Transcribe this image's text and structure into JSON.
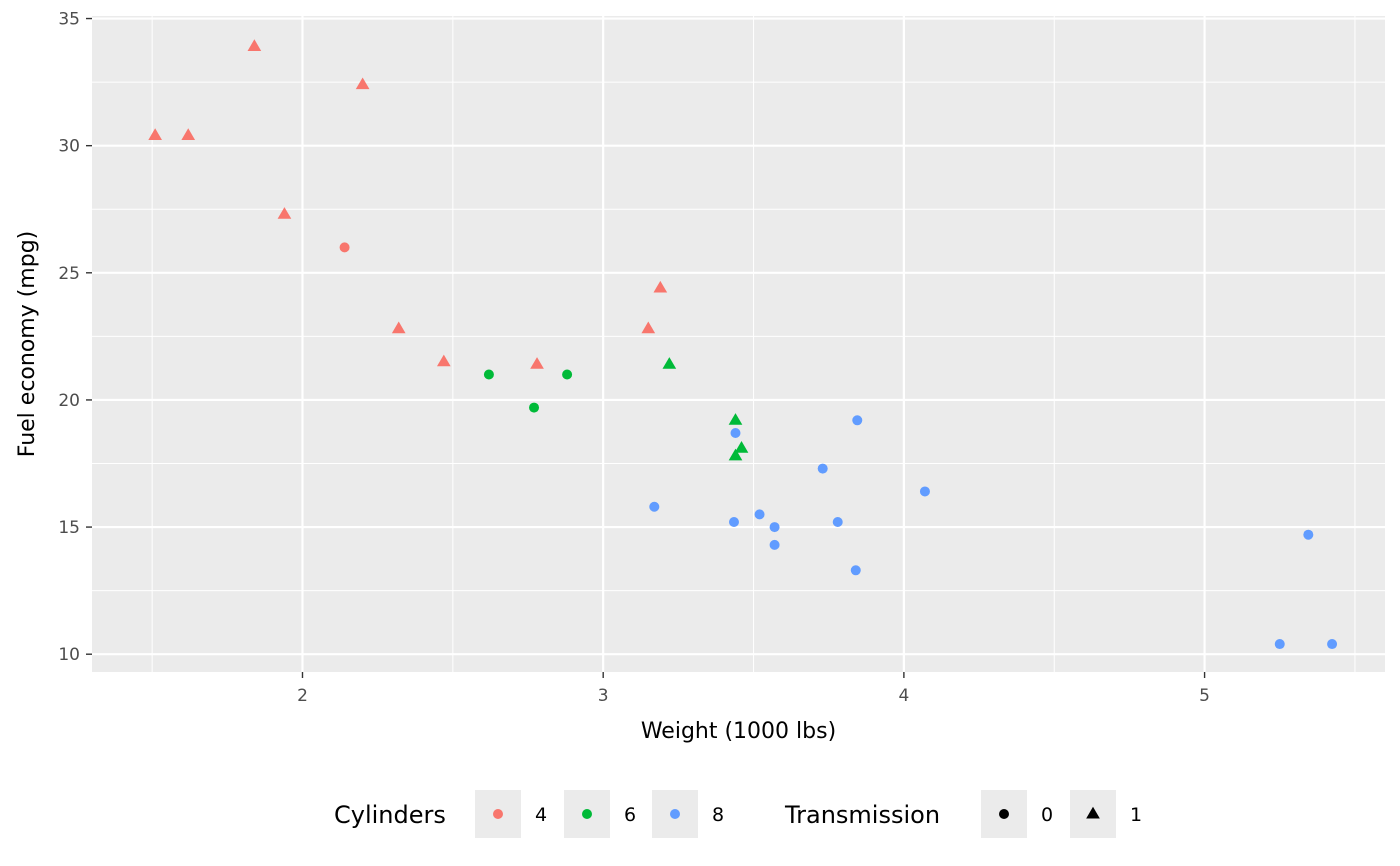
{
  "chart_data": {
    "type": "scatter",
    "xlabel": "Weight (1000 lbs)",
    "ylabel": "Fuel economy (mpg)",
    "xlim": [
      1.3,
      5.6
    ],
    "ylim": [
      9.3,
      35.1
    ],
    "x_ticks": [
      2,
      3,
      4,
      5
    ],
    "x_tick_labels": [
      "2",
      "3",
      "4",
      "5"
    ],
    "y_ticks": [
      10,
      15,
      20,
      25,
      30,
      35
    ],
    "y_tick_labels": [
      "10",
      "15",
      "20",
      "25",
      "30",
      "35"
    ],
    "grid": true,
    "panel_background": "#ebebeb",
    "legend_position": "bottom",
    "legends": [
      {
        "title": "Cylinders",
        "kind": "color",
        "entries": [
          {
            "label": "4",
            "color": "#f8766d"
          },
          {
            "label": "6",
            "color": "#00ba38"
          },
          {
            "label": "8",
            "color": "#619cff"
          }
        ]
      },
      {
        "title": "Transmission",
        "kind": "shape",
        "entries": [
          {
            "label": "0",
            "shape": "circle"
          },
          {
            "label": "1",
            "shape": "triangle"
          }
        ]
      }
    ],
    "points": [
      {
        "x": 1.51,
        "y": 30.4,
        "cyl": "4",
        "am": "1"
      },
      {
        "x": 1.62,
        "y": 30.4,
        "cyl": "4",
        "am": "1"
      },
      {
        "x": 1.84,
        "y": 33.9,
        "cyl": "4",
        "am": "1"
      },
      {
        "x": 1.94,
        "y": 27.3,
        "cyl": "4",
        "am": "1"
      },
      {
        "x": 2.14,
        "y": 26.0,
        "cyl": "4",
        "am": "0"
      },
      {
        "x": 2.2,
        "y": 32.4,
        "cyl": "4",
        "am": "1"
      },
      {
        "x": 2.32,
        "y": 22.8,
        "cyl": "4",
        "am": "1"
      },
      {
        "x": 2.47,
        "y": 21.5,
        "cyl": "4",
        "am": "1"
      },
      {
        "x": 2.78,
        "y": 21.4,
        "cyl": "4",
        "am": "1"
      },
      {
        "x": 3.15,
        "y": 22.8,
        "cyl": "4",
        "am": "1"
      },
      {
        "x": 3.19,
        "y": 24.4,
        "cyl": "4",
        "am": "1"
      },
      {
        "x": 2.62,
        "y": 21.0,
        "cyl": "6",
        "am": "0"
      },
      {
        "x": 2.77,
        "y": 19.7,
        "cyl": "6",
        "am": "0"
      },
      {
        "x": 2.88,
        "y": 21.0,
        "cyl": "6",
        "am": "0"
      },
      {
        "x": 3.22,
        "y": 21.4,
        "cyl": "6",
        "am": "1"
      },
      {
        "x": 3.44,
        "y": 19.2,
        "cyl": "6",
        "am": "1"
      },
      {
        "x": 3.44,
        "y": 17.8,
        "cyl": "6",
        "am": "1"
      },
      {
        "x": 3.46,
        "y": 18.1,
        "cyl": "6",
        "am": "1"
      },
      {
        "x": 3.17,
        "y": 15.8,
        "cyl": "8",
        "am": "0"
      },
      {
        "x": 3.44,
        "y": 18.7,
        "cyl": "8",
        "am": "0"
      },
      {
        "x": 3.435,
        "y": 15.2,
        "cyl": "8",
        "am": "0"
      },
      {
        "x": 3.52,
        "y": 15.5,
        "cyl": "8",
        "am": "0"
      },
      {
        "x": 3.57,
        "y": 15.0,
        "cyl": "8",
        "am": "0"
      },
      {
        "x": 3.57,
        "y": 14.3,
        "cyl": "8",
        "am": "0"
      },
      {
        "x": 3.73,
        "y": 17.3,
        "cyl": "8",
        "am": "0"
      },
      {
        "x": 3.78,
        "y": 15.2,
        "cyl": "8",
        "am": "0"
      },
      {
        "x": 3.84,
        "y": 13.3,
        "cyl": "8",
        "am": "0"
      },
      {
        "x": 3.845,
        "y": 19.2,
        "cyl": "8",
        "am": "0"
      },
      {
        "x": 4.07,
        "y": 16.4,
        "cyl": "8",
        "am": "0"
      },
      {
        "x": 5.25,
        "y": 10.4,
        "cyl": "8",
        "am": "0"
      },
      {
        "x": 5.345,
        "y": 14.7,
        "cyl": "8",
        "am": "0"
      },
      {
        "x": 5.424,
        "y": 10.4,
        "cyl": "8",
        "am": "0"
      }
    ]
  }
}
